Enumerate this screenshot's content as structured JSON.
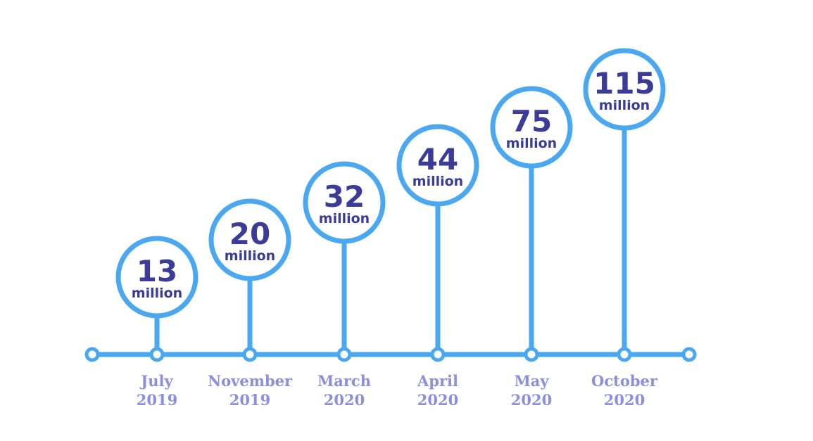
{
  "chart_data": {
    "type": "timeline",
    "unit": "million",
    "categories": [
      {
        "month": "July",
        "year": "2019"
      },
      {
        "month": "November",
        "year": "2019"
      },
      {
        "month": "March",
        "year": "2020"
      },
      {
        "month": "April",
        "year": "2020"
      },
      {
        "month": "May",
        "year": "2020"
      },
      {
        "month": "October",
        "year": "2020"
      }
    ],
    "values": [
      13,
      20,
      32,
      44,
      75,
      115
    ],
    "labels": [
      "13",
      "20",
      "32",
      "44",
      "75",
      "115"
    ]
  },
  "colors": {
    "line": "#4aa8f2",
    "value_text": "#3b3b9a",
    "date_text": "#8c8ee0",
    "background": "#ffffff"
  }
}
